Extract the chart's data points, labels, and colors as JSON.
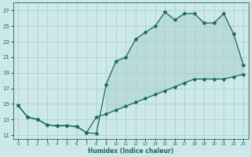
{
  "xlabel": "Humidex (Indice chaleur)",
  "bg_color": "#cce8e8",
  "grid_color": "#aacccc",
  "line_color": "#1a6b5e",
  "xlim": [
    -0.5,
    23.5
  ],
  "ylim": [
    10.5,
    28.0
  ],
  "xticks": [
    0,
    1,
    2,
    3,
    4,
    5,
    6,
    7,
    8,
    9,
    10,
    11,
    12,
    13,
    14,
    15,
    16,
    17,
    18,
    19,
    20,
    21,
    22,
    23
  ],
  "yticks": [
    11,
    13,
    15,
    17,
    19,
    21,
    23,
    25,
    27
  ],
  "curve1_x": [
    0,
    1,
    2,
    3,
    4,
    5,
    6,
    7,
    8,
    9,
    10,
    11,
    12,
    13,
    14,
    15,
    16,
    17,
    18,
    19,
    20,
    21,
    22,
    23
  ],
  "curve1_y": [
    14.8,
    13.3,
    13.0,
    12.3,
    12.2,
    12.2,
    12.1,
    11.3,
    11.2,
    17.5,
    20.5,
    21.0,
    23.3,
    24.2,
    25.0,
    26.8,
    25.8,
    26.6,
    26.6,
    25.4,
    25.4,
    26.6,
    24.0,
    20.0
  ],
  "curve2_x": [
    0,
    1,
    2,
    3,
    4,
    5,
    6,
    7,
    8,
    9,
    10,
    11,
    12,
    13,
    14,
    15,
    16,
    17,
    18,
    19,
    20,
    21,
    22,
    23
  ],
  "curve2_y": [
    14.8,
    13.3,
    13.0,
    12.3,
    12.2,
    12.2,
    12.1,
    11.3,
    13.3,
    13.7,
    14.2,
    14.7,
    15.2,
    15.7,
    16.2,
    16.7,
    17.2,
    17.7,
    18.2,
    18.2,
    18.2,
    18.2,
    18.5,
    18.8
  ],
  "marker": "*",
  "markersize": 3.0,
  "linewidth": 0.9
}
